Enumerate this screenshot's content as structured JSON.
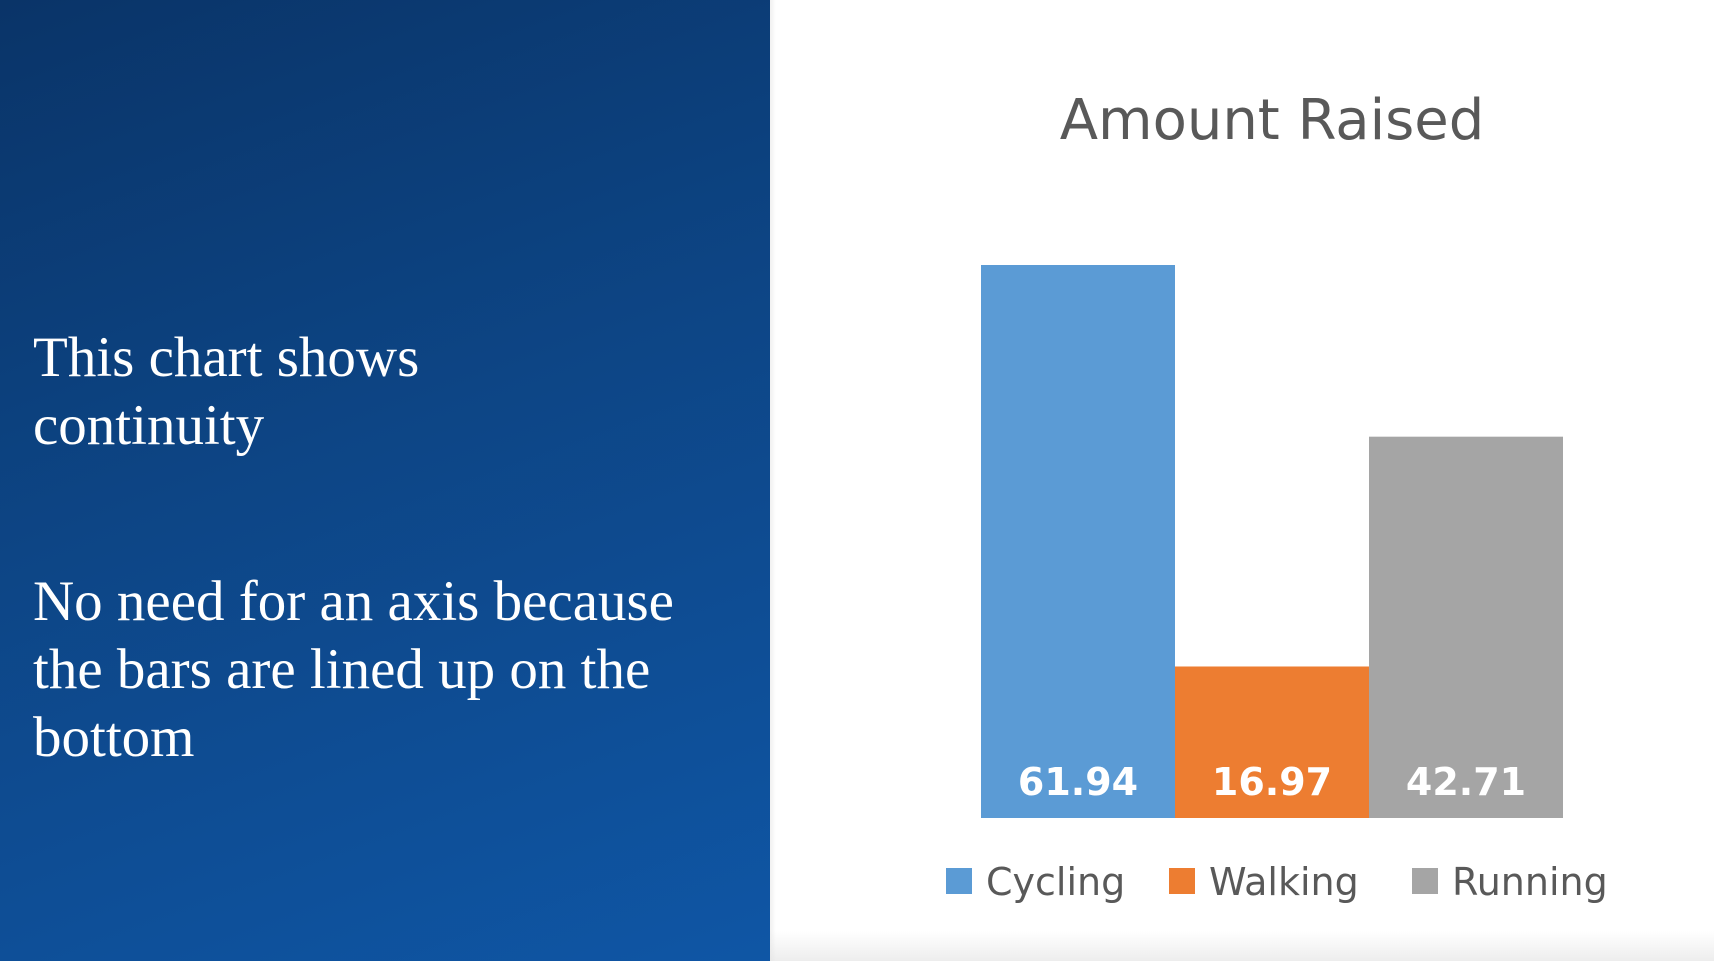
{
  "panel": {
    "line1": "This chart shows continuity",
    "line2": "No need for an axis because the bars are lined up on the bottom"
  },
  "chart_data": {
    "type": "bar",
    "title": "Amount Raised",
    "series": [
      {
        "name": "Cycling",
        "values": [
          61.94
        ],
        "color": "#5b9bd5"
      },
      {
        "name": "Walking",
        "values": [
          16.97
        ],
        "color": "#ed7d31"
      },
      {
        "name": "Running",
        "values": [
          42.71
        ],
        "color": "#a5a5a5"
      }
    ],
    "data_labels": [
      "61.94",
      "16.97",
      "42.71"
    ],
    "ylim": [
      0,
      61.94
    ],
    "axes_visible": false,
    "grid": false,
    "legend": "bottom"
  }
}
